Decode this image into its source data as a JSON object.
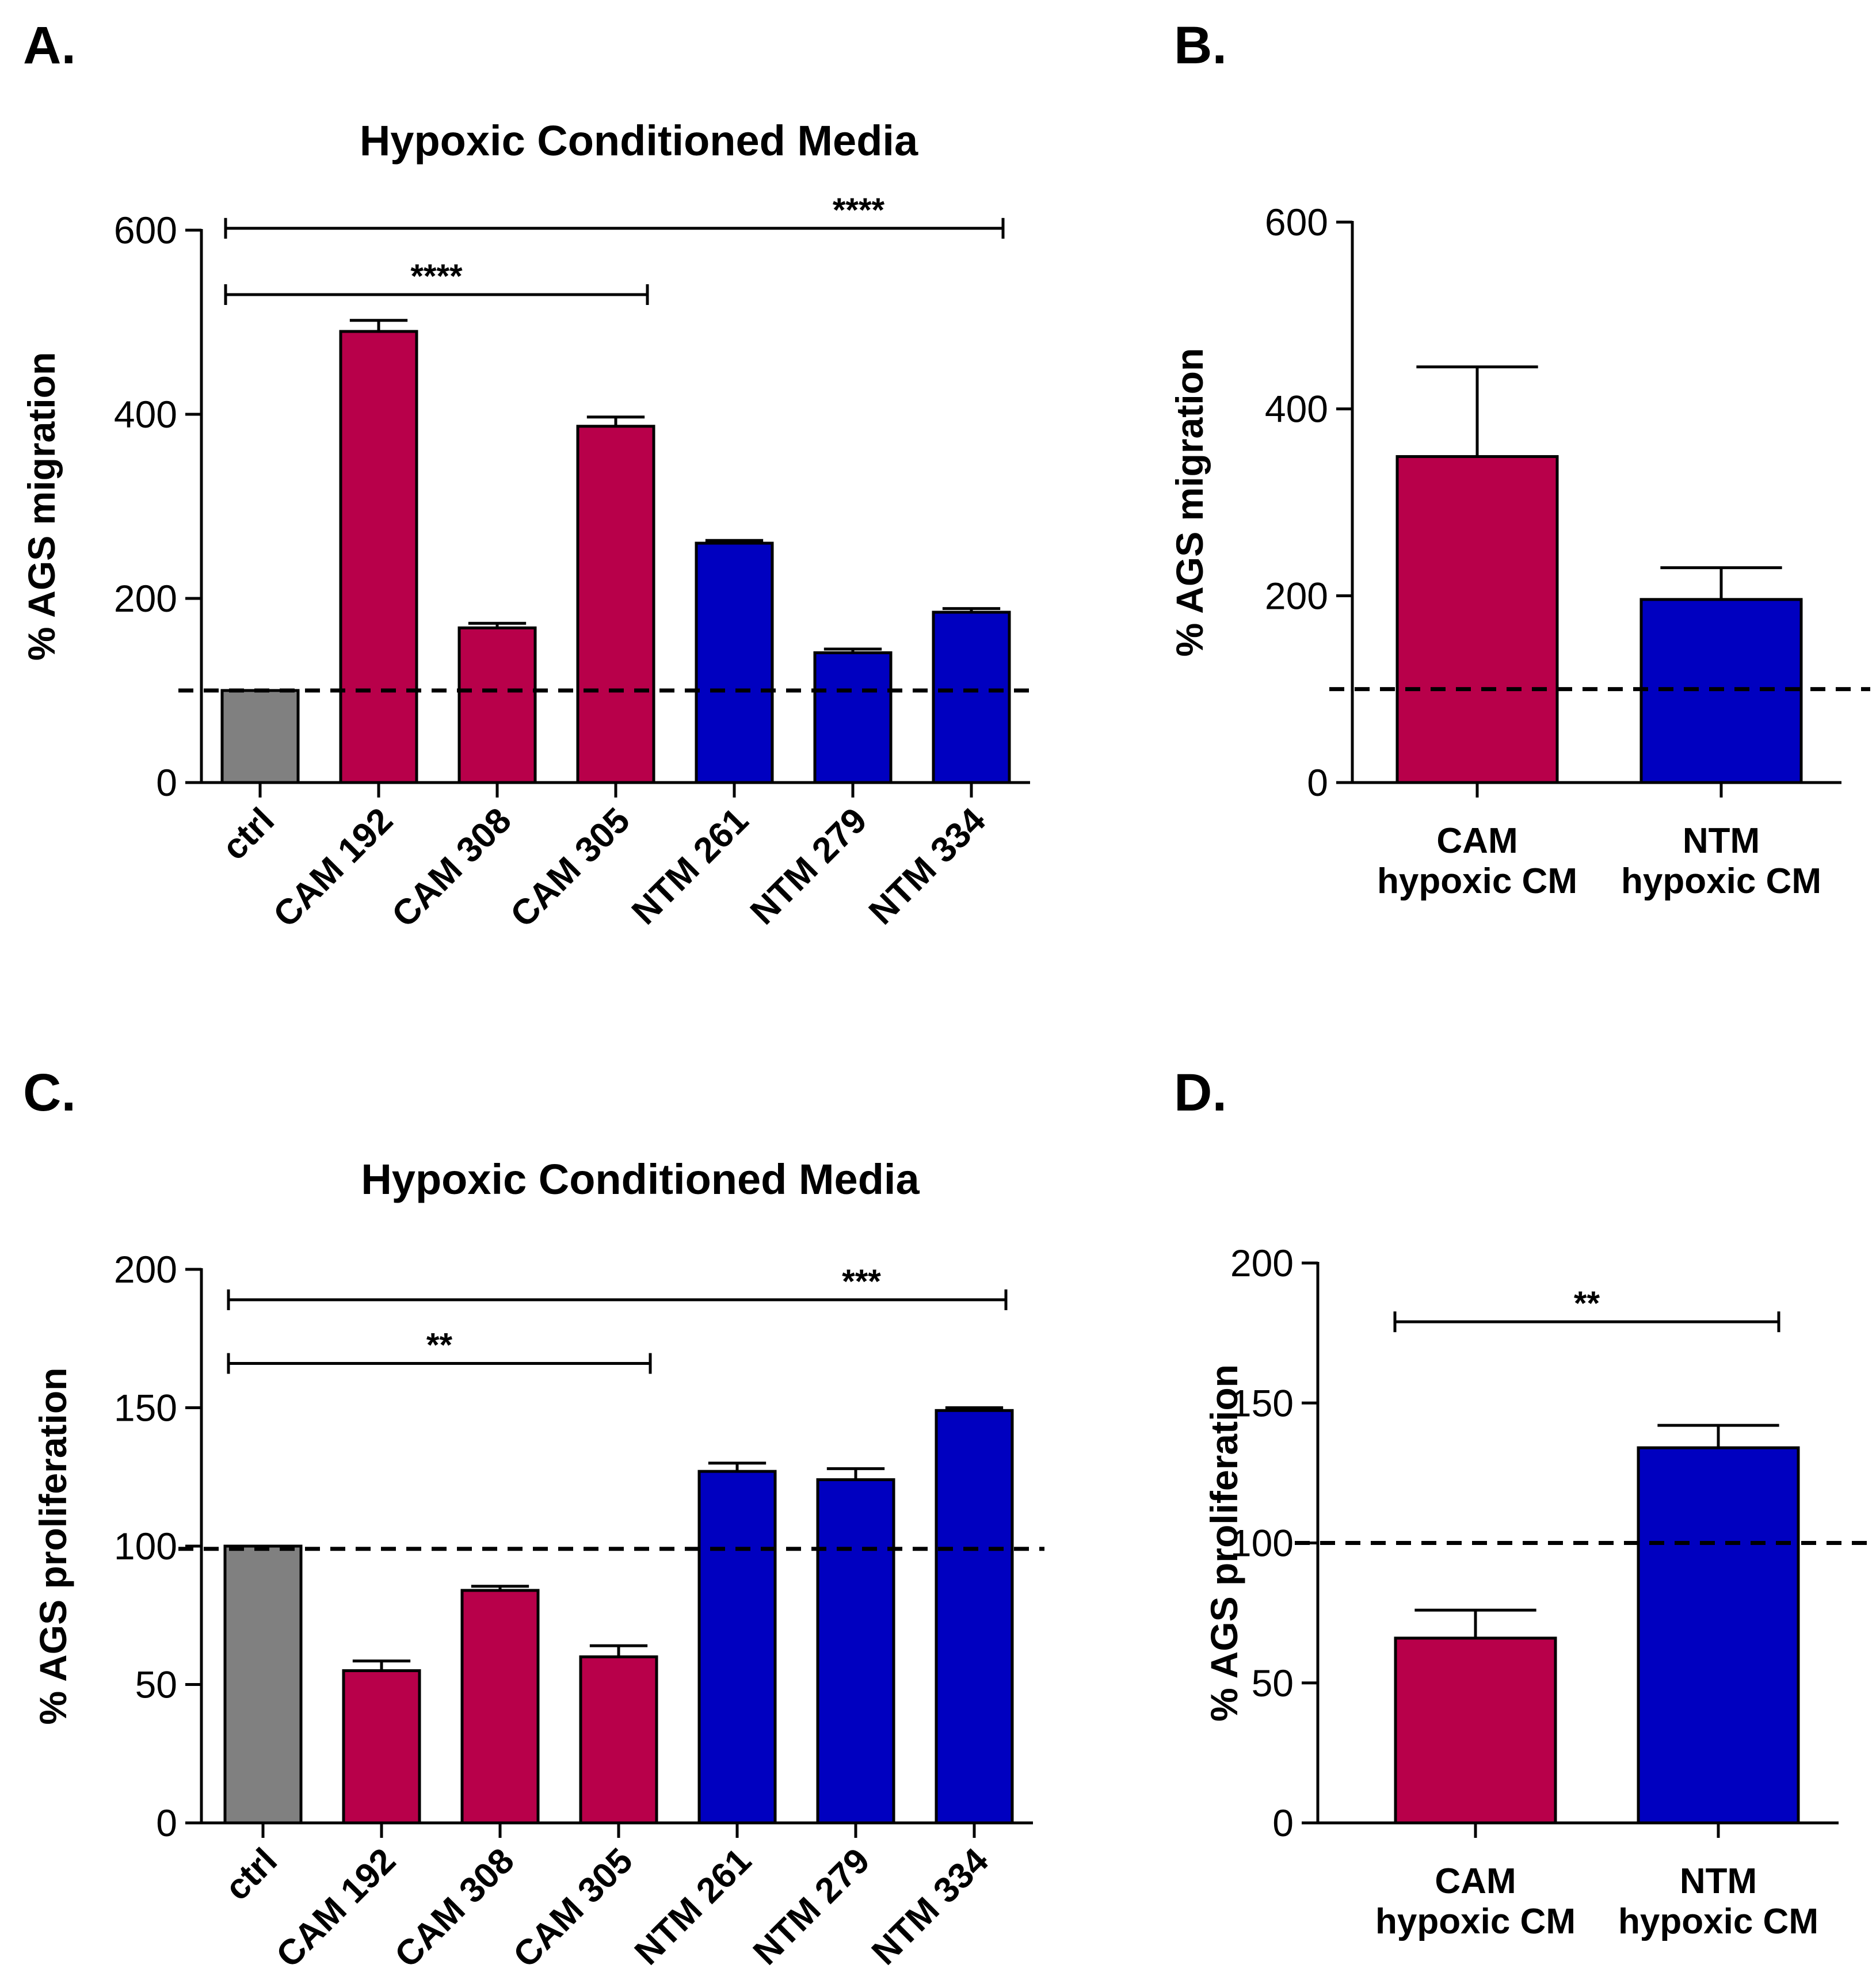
{
  "colors": {
    "ctrl": "#808080",
    "CAM": "#B8004A",
    "NTM": "#0000C0"
  },
  "chart_data": [
    {
      "panel": "A.",
      "type": "bar",
      "title": "Hypoxic Conditioned Media",
      "ylabel": "% AGS migration",
      "xlabel": "",
      "ylim": [
        0,
        600
      ],
      "yticks": [
        0,
        200,
        400,
        600
      ],
      "reference_line": 100,
      "categories": [
        "ctrl",
        "CAM 192",
        "CAM 308",
        "CAM 305",
        "NTM 261",
        "NTM 279",
        "NTM 334"
      ],
      "groups": [
        "ctrl",
        "CAM",
        "CAM",
        "CAM",
        "NTM",
        "NTM",
        "NTM"
      ],
      "values": [
        100,
        490,
        168,
        387,
        260,
        141,
        185
      ],
      "errors": [
        0,
        12,
        5,
        10,
        3,
        4,
        4
      ],
      "significance": [
        {
          "from": 0,
          "to": 3,
          "label": "****",
          "y": 530
        },
        {
          "from": 0,
          "to": 6,
          "label": "****",
          "y": 602
        }
      ]
    },
    {
      "panel": "B.",
      "type": "bar",
      "title": "",
      "ylabel": "% AGS migration",
      "xlabel": "",
      "ylim": [
        0,
        600
      ],
      "yticks": [
        0,
        200,
        400,
        600
      ],
      "reference_line": 100,
      "categories": [
        [
          "CAM",
          "hypoxic CM"
        ],
        [
          "NTM",
          "hypoxic CM"
        ]
      ],
      "groups": [
        "CAM",
        "NTM"
      ],
      "values": [
        349,
        196
      ],
      "errors": [
        96,
        34
      ],
      "significance": []
    },
    {
      "panel": "C.",
      "type": "bar",
      "title": "Hypoxic Conditioned Media",
      "ylabel": "% AGS proliferation",
      "xlabel": "",
      "ylim": [
        0,
        200
      ],
      "yticks": [
        0,
        50,
        100,
        150,
        200
      ],
      "reference_line": 99,
      "categories": [
        "ctrl",
        "CAM 192",
        "CAM 308",
        "CAM 305",
        "NTM 261",
        "NTM 279",
        "NTM 334"
      ],
      "groups": [
        "ctrl",
        "CAM",
        "CAM",
        "CAM",
        "NTM",
        "NTM",
        "NTM"
      ],
      "values": [
        100,
        55,
        84,
        60,
        127,
        124,
        149
      ],
      "errors": [
        0,
        3.5,
        1.5,
        4,
        3,
        4,
        1
      ],
      "significance": [
        {
          "from": 0,
          "to": 3,
          "label": "**",
          "y": 166
        },
        {
          "from": 0,
          "to": 6,
          "label": "***",
          "y": 189
        }
      ]
    },
    {
      "panel": "D.",
      "type": "bar",
      "title": "",
      "ylabel": "% AGS proliferation",
      "xlabel": "",
      "ylim": [
        0,
        200
      ],
      "yticks": [
        0,
        50,
        100,
        150,
        200
      ],
      "reference_line": 100,
      "categories": [
        [
          "CAM",
          "hypoxic CM"
        ],
        [
          "NTM",
          "hypoxic CM"
        ]
      ],
      "groups": [
        "CAM",
        "NTM"
      ],
      "values": [
        66,
        134
      ],
      "errors": [
        10,
        8
      ],
      "significance": [
        {
          "from": 0,
          "to": 1,
          "label": "**",
          "y": 179
        }
      ]
    }
  ]
}
